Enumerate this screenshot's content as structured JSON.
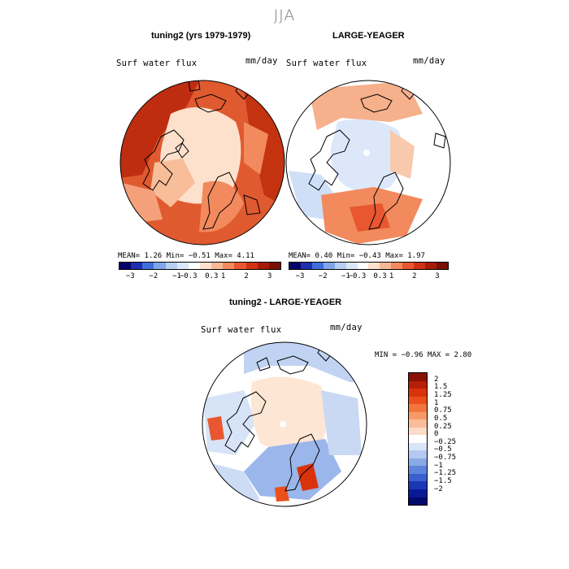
{
  "season": "JJA",
  "panel1": {
    "title": "tuning2 (yrs 1979-1979)",
    "variable": "Surf water flux",
    "units": "mm/day",
    "stats": "MEAN=   1.26  Min=  −0.51  Max=   4.11",
    "ticks": [
      "−3",
      "−2",
      "−1",
      "−0.3",
      "0.3",
      "1",
      "2",
      "3"
    ]
  },
  "panel2": {
    "title": "LARGE-YEAGER",
    "variable": "Surf water flux",
    "units": "mm/day",
    "stats": "MEAN=   0.40  Min=  −0.43  Max=   1.97",
    "ticks": [
      "−3",
      "−2",
      "−1",
      "−0.3",
      "0.3",
      "1",
      "2",
      "3"
    ]
  },
  "panel3": {
    "title": "tuning2 - LARGE-YEAGER",
    "variable": "Surf water flux",
    "units": "mm/day",
    "minmax": "MIN =   −0.96  MAX =    2.80",
    "levels": [
      "2",
      "1.5",
      "1.25",
      "1",
      "0.75",
      "0.5",
      "0.25",
      "0",
      "−0.25",
      "−0.5",
      "−0.75",
      "−1",
      "−1.25",
      "−1.5",
      "−2"
    ]
  },
  "colors": {
    "horiz_scale": [
      "#08036b",
      "#1f2fb0",
      "#3f6fdc",
      "#7fa6ea",
      "#b7cff4",
      "#dce8fa",
      "#ffffff",
      "#fde1cc",
      "#f7b994",
      "#f28a5e",
      "#e8572f",
      "#cf3112",
      "#a81c07",
      "#7a0f03"
    ],
    "diff_scale": [
      "#8a1003",
      "#b51e05",
      "#d9330c",
      "#eb4f1c",
      "#f2743f",
      "#f69a68",
      "#f8bd99",
      "#fbdcc6",
      "#ffffff",
      "#d8e4f7",
      "#b3c9ef",
      "#8aaae7",
      "#5f84dc",
      "#3a5fcf",
      "#1c36b8",
      "#0a1a95",
      "#040a6b"
    ]
  }
}
